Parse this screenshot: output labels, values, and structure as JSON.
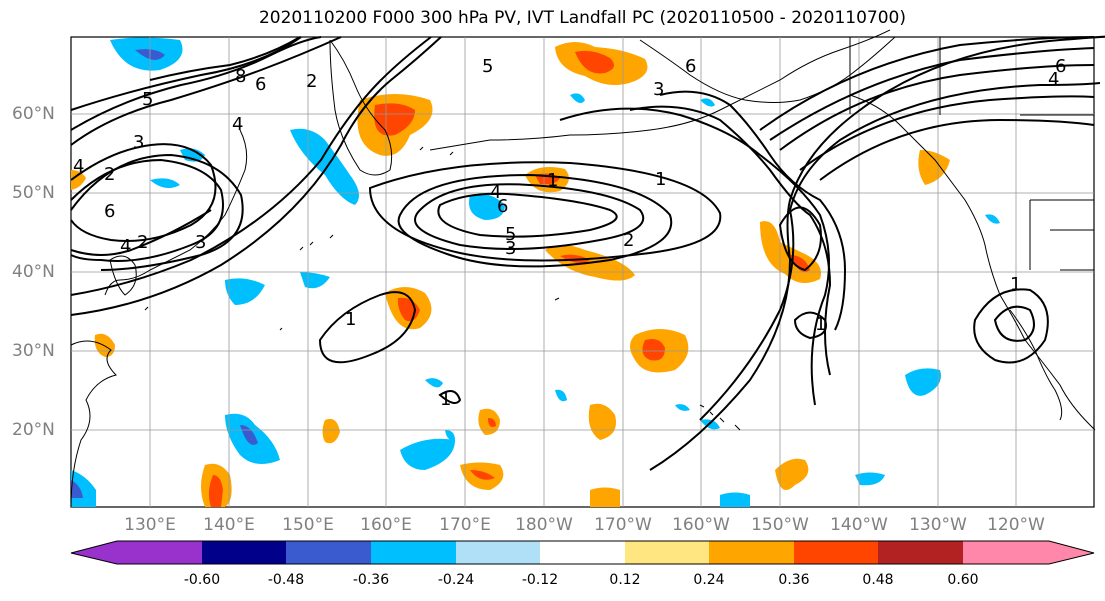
{
  "title": "2020110200 F000 300 hPa PV, IVT Landfall PC (2020110500 - 2020110700)",
  "lat_labels": [
    "60°N",
    "50°N",
    "40°N",
    "30°N",
    "20°N"
  ],
  "lon_labels": [
    "130°E",
    "140°E",
    "150°E",
    "160°E",
    "170°E",
    "180°W",
    "170°W",
    "160°W",
    "150°W",
    "140°W",
    "130°W",
    "120°W"
  ],
  "colorbar": {
    "ticks": [
      "-0.60",
      "-0.48",
      "-0.36",
      "-0.24",
      "-0.12",
      "0.12",
      "0.24",
      "0.36",
      "0.48",
      "0.60"
    ],
    "colors": [
      "#9932cc",
      "#00008b",
      "#3a5bd0",
      "#00bfff",
      "#b0e0f8",
      "#ffffff",
      "#ffe680",
      "#ffa500",
      "#ff4500",
      "#b22222",
      "#ff88aa"
    ]
  },
  "contour_labels": [
    "5",
    "8",
    "6",
    "4",
    "2",
    "3",
    "4",
    "2",
    "6",
    "4",
    "3",
    "2",
    "1",
    "4",
    "6",
    "5",
    "3",
    "2",
    "1",
    "1",
    "1",
    "5",
    "3",
    "6",
    "6",
    "4",
    "1",
    "1"
  ],
  "colors": {
    "ocean": "#ffffff",
    "coast": "#000000",
    "grid": "#999999",
    "axis_label": "#808080"
  }
}
